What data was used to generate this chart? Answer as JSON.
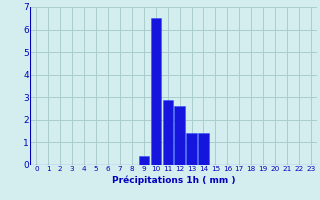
{
  "hours": [
    0,
    1,
    2,
    3,
    4,
    5,
    6,
    7,
    8,
    9,
    10,
    11,
    12,
    13,
    14,
    15,
    16,
    17,
    18,
    19,
    20,
    21,
    22,
    23
  ],
  "values": [
    0,
    0,
    0,
    0,
    0,
    0,
    0,
    0,
    0,
    0.4,
    6.5,
    2.9,
    2.6,
    1.4,
    1.4,
    0,
    0,
    0,
    0,
    0,
    0,
    0,
    0,
    0
  ],
  "bar_color": "#1515dd",
  "bar_edge_color": "#3355ff",
  "background_color": "#d4eef0",
  "grid_color": "#aacccc",
  "xlabel": "Précipitations 1h ( mm )",
  "xlabel_color": "#0000bb",
  "tick_color": "#0000bb",
  "ylim": [
    0,
    7
  ],
  "yticks": [
    0,
    1,
    2,
    3,
    4,
    5,
    6,
    7
  ],
  "xlim": [
    -0.5,
    23.5
  ]
}
